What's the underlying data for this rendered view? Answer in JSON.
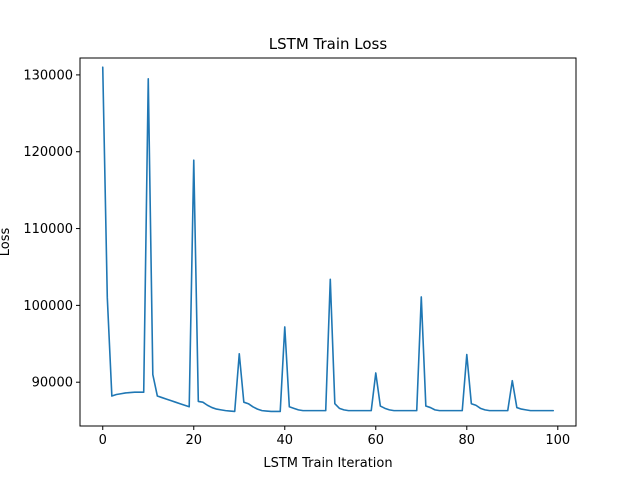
{
  "chart_data": {
    "type": "line",
    "title": "LSTM Train Loss",
    "xlabel": "LSTM Train Iteration",
    "ylabel": "Loss",
    "xlim": [
      -5,
      104
    ],
    "ylim": [
      84300,
      132200
    ],
    "xticks": [
      0,
      20,
      40,
      60,
      80,
      100
    ],
    "yticks": [
      90000,
      100000,
      110000,
      120000,
      130000
    ],
    "grid": false,
    "series": [
      {
        "name": "Loss",
        "color": "#1f77b4",
        "x": [
          0,
          1,
          2,
          3,
          4,
          5,
          6,
          7,
          8,
          9,
          10,
          11,
          12,
          13,
          14,
          15,
          16,
          17,
          18,
          19,
          20,
          21,
          22,
          23,
          24,
          25,
          26,
          27,
          28,
          29,
          30,
          31,
          32,
          33,
          34,
          35,
          36,
          37,
          38,
          39,
          40,
          41,
          42,
          43,
          44,
          45,
          46,
          47,
          48,
          49,
          50,
          51,
          52,
          53,
          54,
          55,
          56,
          57,
          58,
          59,
          60,
          61,
          62,
          63,
          64,
          65,
          66,
          67,
          68,
          69,
          70,
          71,
          72,
          73,
          74,
          75,
          76,
          77,
          78,
          79,
          80,
          81,
          82,
          83,
          84,
          85,
          86,
          87,
          88,
          89,
          90,
          91,
          92,
          93,
          94,
          95,
          96,
          97,
          98,
          99
        ],
        "y": [
          131000,
          101000,
          88200,
          88400,
          88500,
          88600,
          88650,
          88700,
          88700,
          88700,
          129500,
          91000,
          88200,
          88000,
          87800,
          87600,
          87400,
          87200,
          87000,
          86800,
          118900,
          87500,
          87400,
          87000,
          86700,
          86500,
          86400,
          86300,
          86250,
          86200,
          93700,
          87400,
          87200,
          86800,
          86500,
          86300,
          86250,
          86200,
          86200,
          86200,
          97200,
          86800,
          86600,
          86400,
          86300,
          86300,
          86300,
          86300,
          86300,
          86300,
          103400,
          87200,
          86600,
          86400,
          86300,
          86300,
          86300,
          86300,
          86300,
          86300,
          91200,
          86900,
          86600,
          86400,
          86300,
          86300,
          86300,
          86300,
          86300,
          86300,
          101100,
          86900,
          86700,
          86400,
          86300,
          86300,
          86300,
          86300,
          86300,
          86300,
          93600,
          87200,
          87000,
          86600,
          86400,
          86300,
          86300,
          86300,
          86300,
          86300,
          90200,
          86700,
          86500,
          86400,
          86300,
          86300,
          86300,
          86300,
          86300,
          86300
        ]
      }
    ]
  }
}
